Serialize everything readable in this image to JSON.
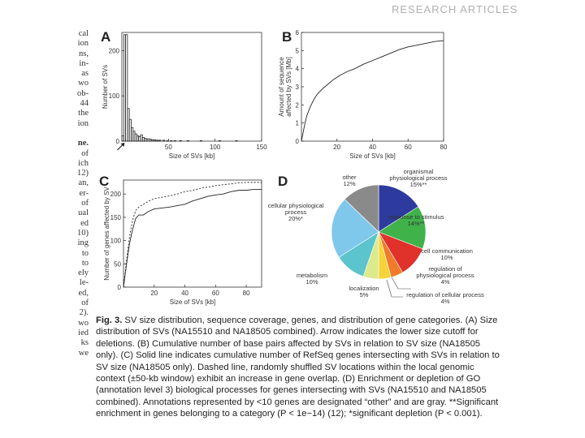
{
  "header": {
    "text": "RESEARCH ARTICLES"
  },
  "left_column_lines": [
    "cal",
    "ion",
    "ns,",
    "in-",
    "as",
    "wo",
    "ob-",
    "44",
    "the",
    "ion",
    "",
    "ne.",
    "of",
    "ich",
    "12)",
    "an,",
    "er-",
    "of",
    "ual",
    "ed",
    "10)",
    "ing",
    "to",
    "to",
    "ely",
    "le-",
    "ed,",
    "of",
    "2).",
    "wo",
    "ied",
    "ks",
    "we"
  ],
  "panels": {
    "A": {
      "label": "A"
    },
    "B": {
      "label": "B"
    },
    "C": {
      "label": "C"
    },
    "D": {
      "label": "D"
    }
  },
  "chart_data": [
    {
      "id": "A",
      "type": "bar",
      "xlabel": "Size of SVs [kb]",
      "ylabel": "Number of SVs",
      "xlim": [
        0,
        150
      ],
      "ylim": [
        0,
        240
      ],
      "xticks": [
        50,
        100,
        150
      ],
      "yticks": [
        0,
        100,
        200
      ],
      "bin_width_kb": 2,
      "bins_start_kb": [
        0,
        2,
        4,
        6,
        8,
        10,
        12,
        14,
        16,
        18,
        20,
        22,
        24,
        26,
        28,
        30,
        32,
        34,
        36,
        38,
        40,
        44,
        48,
        52,
        56,
        62,
        70,
        84,
        104,
        122
      ],
      "values": [
        12,
        235,
        235,
        72,
        48,
        30,
        22,
        16,
        12,
        10,
        14,
        8,
        6,
        5,
        5,
        4,
        3,
        3,
        2,
        2,
        2,
        2,
        1,
        1,
        1,
        1,
        1,
        1,
        1,
        1
      ],
      "annotation": "arrow indicating lower size cutoff for deletions"
    },
    {
      "id": "B",
      "type": "line",
      "xlabel": "Size of SVs [kb]",
      "ylabel": "Amount of sequence affected by SVs [Mb]",
      "xlim": [
        0,
        80
      ],
      "ylim": [
        0,
        6
      ],
      "xticks": [
        20,
        40,
        60,
        80
      ],
      "yticks": [
        0,
        1,
        2,
        3,
        4,
        5,
        6
      ],
      "series": [
        {
          "x": [
            0,
            1,
            2,
            3,
            5,
            7,
            9,
            12,
            15,
            18,
            22,
            26,
            30,
            35,
            40,
            45,
            50,
            55,
            60,
            65,
            70,
            75,
            80
          ],
          "y": [
            0,
            0.5,
            1.0,
            1.4,
            1.9,
            2.3,
            2.6,
            2.9,
            3.15,
            3.4,
            3.65,
            3.85,
            4.0,
            4.25,
            4.45,
            4.65,
            4.85,
            5.05,
            5.2,
            5.3,
            5.4,
            5.5,
            5.55
          ]
        }
      ]
    },
    {
      "id": "C",
      "type": "line",
      "xlabel": "Size of SVs [kb]",
      "ylabel": "Number of genes affected by SV",
      "xlim": [
        0,
        90
      ],
      "ylim": [
        0,
        230
      ],
      "xticks": [
        20,
        40,
        60,
        80
      ],
      "yticks": [
        0,
        50,
        100,
        150,
        200
      ],
      "series": [
        {
          "style": "solid",
          "x": [
            0,
            2,
            4,
            6,
            8,
            10,
            13,
            16,
            20,
            25,
            30,
            35,
            40,
            45,
            50,
            55,
            60,
            65,
            70,
            75,
            80,
            85,
            90
          ],
          "y": [
            0,
            50,
            95,
            125,
            148,
            155,
            155,
            162,
            168,
            170,
            172,
            175,
            178,
            185,
            190,
            195,
            198,
            200,
            205,
            208,
            208,
            210,
            210
          ]
        },
        {
          "style": "dashed",
          "x": [
            0,
            2,
            4,
            6,
            8,
            10,
            13,
            16,
            20,
            25,
            30,
            35,
            40,
            45,
            50,
            55,
            60,
            65,
            70,
            75,
            80,
            85,
            90
          ],
          "y": [
            0,
            58,
            110,
            145,
            165,
            172,
            178,
            184,
            190,
            193,
            196,
            200,
            205,
            208,
            212,
            215,
            218,
            220,
            222,
            224,
            225,
            225,
            225
          ]
        }
      ]
    },
    {
      "id": "D",
      "type": "pie",
      "slices": [
        {
          "label": "organismal physiological process",
          "pct_label": "15%**",
          "value": 15,
          "color": "#2d3a9e"
        },
        {
          "label": "response to stimulus",
          "pct_label": "14%**",
          "value": 14,
          "color": "#3fb24a"
        },
        {
          "label": "cell communication",
          "pct_label": "10%",
          "value": 10,
          "color": "#e0312b"
        },
        {
          "label": "regulation of physiological process",
          "pct_label": "4%",
          "value": 4,
          "color": "#f07b2a"
        },
        {
          "label": "regulation of cellular process",
          "pct_label": "4%",
          "value": 4,
          "color": "#f5d33a"
        },
        {
          "label": "localization",
          "pct_label": "5%",
          "value": 5,
          "color": "#dcea8c"
        },
        {
          "label": "metabolism",
          "pct_label": "10%",
          "value": 10,
          "color": "#5bc4cc"
        },
        {
          "label": "cellular physiological process",
          "pct_label": "20%*",
          "value": 20,
          "color": "#7fc8ec"
        },
        {
          "label": "other",
          "pct_label": "12%",
          "value": 12,
          "color": "#8a8a8a"
        }
      ]
    }
  ],
  "pie_labels": {
    "organismal_1": "organismal",
    "organismal_2": "physiological process",
    "organismal_3": "15%**",
    "response_1": "response to stimulus",
    "response_2": "14%**",
    "cellcomm_1": "cell communication",
    "cellcomm_2": "10%",
    "regphys_1": "regulation of",
    "regphys_2": "physiological process",
    "regphys_3": "4%",
    "regcell_1": "regulation of cellular process",
    "regcell_2": "4%",
    "local_1": "localization",
    "local_2": "5%",
    "metab_1": "metabolism",
    "metab_2": "10%",
    "cellphys_1": "cellular physiological",
    "cellphys_2": "process",
    "cellphys_3": "20%*",
    "other_1": "other",
    "other_2": "12%"
  },
  "caption": {
    "fig_label": "Fig. 3.",
    "text": " SV size distribution, sequence coverage, genes, and distribution of gene categories. (A) Size distribution of SVs (NA15510 and NA18505 combined). Arrow indicates the lower size cutoff for deletions. (B) Cumulative number of base pairs affected by SVs in relation to SV size (NA18505 only). (C) Solid line indicates cumulative number of RefSeq genes intersecting with SVs in relation to SV size (NA18505 only). Dashed line, randomly shuffled SV locations within the local genomic context (±50-kb window) exhibit an increase in gene overlap. (D) Enrichment or depletion of GO (annotation level 3) biological processes for genes intersecting with SVs (NA15510 and NA18505 combined). Annotations represented by <10 genes are designated “other” and are gray. **Significant enrichment in genes belonging to a category (P < 1e−14) (12); *significant depletion (P < 0.001)."
  }
}
